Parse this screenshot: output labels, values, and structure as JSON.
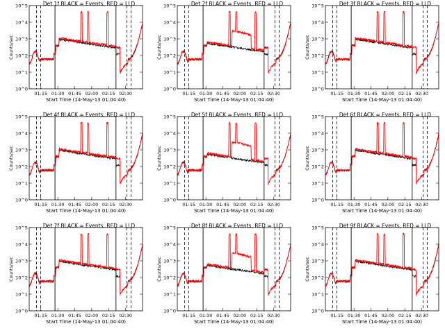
{
  "chart_data": [
    {
      "type": "line",
      "title": "Det 1f BLACK = Events, RED = LLD",
      "detector": "1f",
      "variant": "A",
      "xlabel": "Start Time (14-May-13 01:04:40)",
      "ylabel": "Counts/sec",
      "xticks": [
        "01:15",
        "01:30",
        "01:45",
        "02:00",
        "02:15",
        "02:30"
      ],
      "yticks": [
        "10^0",
        "10^1",
        "10^2",
        "10^3",
        "10^4",
        "10^5"
      ],
      "ylim": [
        1,
        100000
      ],
      "log_y": true,
      "spike_times": [
        "01:51",
        "01:57",
        "02:14"
      ],
      "series": [
        {
          "name": "Events",
          "color": "#000000"
        },
        {
          "name": "LLD",
          "color": "#ff0000"
        }
      ]
    },
    {
      "type": "line",
      "title": "Det 2f BLACK = Events, RED = LLD",
      "detector": "2f",
      "variant": "B",
      "xlabel": "Start Time (14-May-13 01:04:40)",
      "ylabel": "Counts/sec",
      "xticks": [
        "01:15",
        "01:30",
        "01:45",
        "02:00",
        "02:15",
        "02:30"
      ],
      "yticks": [
        "10^0",
        "10^1",
        "10^2",
        "10^3",
        "10^4",
        "10^5"
      ],
      "ylim": [
        1,
        100000
      ],
      "log_y": true,
      "spike_times": [
        "01:51",
        "01:57",
        "02:14"
      ],
      "series": [
        {
          "name": "Events",
          "color": "#000000"
        },
        {
          "name": "LLD",
          "color": "#ff0000"
        }
      ]
    },
    {
      "type": "line",
      "title": "Det 3f BLACK = Events, RED = LLD",
      "detector": "3f",
      "variant": "C",
      "xlabel": "Start Time (14-May-13 01:04:40)",
      "ylabel": "Counts/sec",
      "xticks": [
        "01:15",
        "01:30",
        "01:45",
        "02:00",
        "02:15",
        "02:30"
      ],
      "yticks": [
        "10^0",
        "10^1",
        "10^2",
        "10^3",
        "10^4",
        "10^5"
      ],
      "ylim": [
        1,
        100000
      ],
      "log_y": true,
      "spike_times": [
        "01:51",
        "01:57",
        "02:14"
      ],
      "series": [
        {
          "name": "Events",
          "color": "#000000"
        },
        {
          "name": "LLD",
          "color": "#ff0000"
        }
      ]
    },
    {
      "type": "line",
      "title": "Det 4f BLACK = Events, RED = LLD",
      "detector": "4f",
      "variant": "A",
      "xlabel": "Start Time (14-May-13 01:04:40)",
      "ylabel": "Counts/sec",
      "xticks": [
        "01:15",
        "01:30",
        "01:45",
        "02:00",
        "02:15",
        "02:30"
      ],
      "yticks": [
        "10^0",
        "10^1",
        "10^2",
        "10^3",
        "10^4",
        "10^5"
      ],
      "ylim": [
        1,
        100000
      ],
      "log_y": true,
      "spike_times": [
        "01:51",
        "01:57",
        "02:14"
      ],
      "series": [
        {
          "name": "Events",
          "color": "#000000"
        },
        {
          "name": "LLD",
          "color": "#ff0000"
        }
      ]
    },
    {
      "type": "line",
      "title": "Det 5f BLACK = Events, RED = LLD",
      "detector": "5f",
      "variant": "B",
      "xlabel": "Start Time (14-May-13 01:04:40)",
      "ylabel": "Counts/sec",
      "xticks": [
        "01:15",
        "01:30",
        "01:45",
        "02:00",
        "02:15",
        "02:30"
      ],
      "yticks": [
        "10^0",
        "10^1",
        "10^2",
        "10^3",
        "10^4",
        "10^5"
      ],
      "ylim": [
        1,
        100000
      ],
      "log_y": true,
      "spike_times": [
        "01:51",
        "01:57",
        "02:14"
      ],
      "series": [
        {
          "name": "Events",
          "color": "#000000"
        },
        {
          "name": "LLD",
          "color": "#ff0000"
        }
      ]
    },
    {
      "type": "line",
      "title": "Det 6f BLACK = Events, RED = LLD",
      "detector": "6f",
      "variant": "C",
      "xlabel": "Start Time (14-May-13 01:04:40)",
      "ylabel": "Counts/sec",
      "xticks": [
        "01:15",
        "01:30",
        "01:45",
        "02:00",
        "02:15",
        "02:30"
      ],
      "yticks": [
        "10^0",
        "10^1",
        "10^2",
        "10^3",
        "10^4",
        "10^5"
      ],
      "ylim": [
        1,
        100000
      ],
      "log_y": true,
      "spike_times": [
        "01:51",
        "01:57",
        "02:14"
      ],
      "series": [
        {
          "name": "Events",
          "color": "#000000"
        },
        {
          "name": "LLD",
          "color": "#ff0000"
        }
      ]
    },
    {
      "type": "line",
      "title": "Det 7f BLACK = Events, RED = LLD",
      "detector": "7f",
      "variant": "A",
      "xlabel": "Start Time (14-May-13 01:04:40)",
      "ylabel": "Counts/sec",
      "xticks": [
        "01:15",
        "01:30",
        "01:45",
        "02:00",
        "02:15",
        "02:30"
      ],
      "yticks": [
        "10^0",
        "10^1",
        "10^2",
        "10^3",
        "10^4",
        "10^5"
      ],
      "ylim": [
        1,
        100000
      ],
      "log_y": true,
      "spike_times": [
        "01:51",
        "01:57",
        "02:14"
      ],
      "series": [
        {
          "name": "Events",
          "color": "#000000"
        },
        {
          "name": "LLD",
          "color": "#ff0000"
        }
      ]
    },
    {
      "type": "line",
      "title": "Det 8f BLACK = Events, RED = LLD",
      "detector": "8f",
      "variant": "B",
      "xlabel": "Start Time (14-May-13 01:04:40)",
      "ylabel": "Counts/sec",
      "xticks": [
        "01:15",
        "01:30",
        "01:45",
        "02:00",
        "02:15",
        "02:30"
      ],
      "yticks": [
        "10^0",
        "10^1",
        "10^2",
        "10^3",
        "10^4",
        "10^5"
      ],
      "ylim": [
        1,
        100000
      ],
      "log_y": true,
      "spike_times": [
        "01:51",
        "01:57",
        "02:14"
      ],
      "series": [
        {
          "name": "Events",
          "color": "#000000"
        },
        {
          "name": "LLD",
          "color": "#ff0000"
        }
      ]
    },
    {
      "type": "line",
      "title": "Det 9f BLACK = Events, RED = LLD",
      "detector": "9f",
      "variant": "C",
      "xlabel": "Start Time (14-May-13 01:04:40)",
      "ylabel": "Counts/sec",
      "xticks": [
        "01:15",
        "01:30",
        "01:45",
        "02:00",
        "02:15",
        "02:30"
      ],
      "yticks": [
        "10^0",
        "10^1",
        "10^2",
        "10^3",
        "10^4",
        "10^5"
      ],
      "ylim": [
        1,
        100000
      ],
      "log_y": true,
      "spike_times": [
        "01:51",
        "01:57",
        "02:14"
      ],
      "series": [
        {
          "name": "Events",
          "color": "#000000"
        },
        {
          "name": "LLD",
          "color": "#ff0000"
        }
      ]
    }
  ]
}
